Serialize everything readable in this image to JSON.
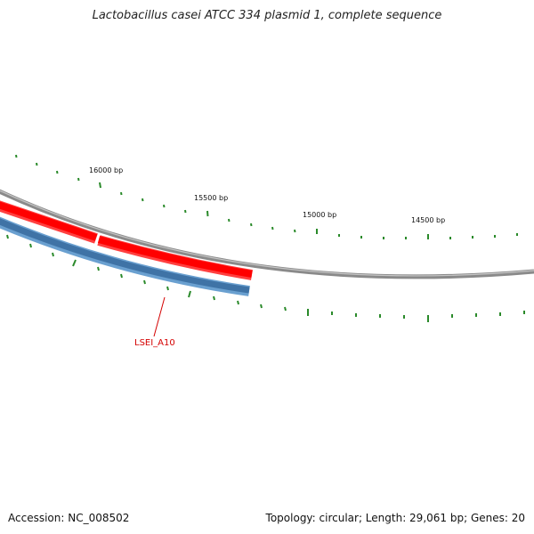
{
  "title": "Lactobacillus casei ATCC 334 plasmid 1, complete sequence",
  "ticks": [
    {
      "label": "16000 bp"
    },
    {
      "label": "15500 bp"
    },
    {
      "label": "15000 bp"
    },
    {
      "label": "14500 bp"
    }
  ],
  "gene_label": "LSEI_A10",
  "footer": {
    "accession": "Accession: NC_008502",
    "summary": "Topology: circular; Length: 29,061 bp; Genes: 20"
  },
  "colors": {
    "backbone": "#8a8a8a",
    "forward_feature": "#ff0000",
    "reverse_feature": "#4a7fb0",
    "ticks": "#2a8a2a",
    "gene_label": "#d40000"
  }
}
